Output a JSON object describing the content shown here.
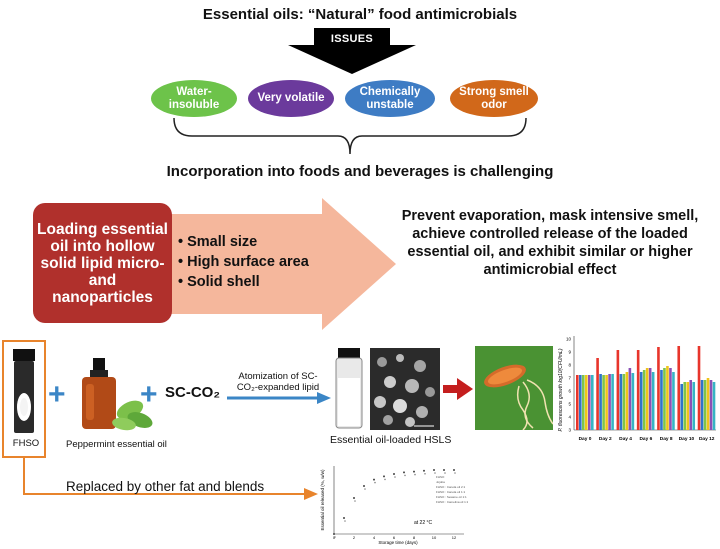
{
  "title": "Essential oils: “Natural” food antimicrobials",
  "issues_label": "ISSUES",
  "issues": [
    {
      "label": "Water-insoluble",
      "color": "#6dc34a"
    },
    {
      "label": "Very volatile",
      "color": "#6b3a9c"
    },
    {
      "label": "Chemically unstable",
      "color": "#3e7cc4"
    },
    {
      "label": "Strong smell odor",
      "color": "#d1681a"
    }
  ],
  "challenge": "Incorporation into foods and beverages is challenging",
  "loading_text": "Loading essential oil into hollow solid lipid micro- and nanoparticles",
  "features": [
    "Small size",
    "High surface area",
    "Solid shell"
  ],
  "result_text": "Prevent evaporation, mask intensive smell, achieve controlled release of the loaded essential oil, and exhibit similar or higher antimicrobial effect",
  "process": {
    "fhso_label": "FHSO",
    "peppermint_label": "Peppermint essential oil",
    "sc_co2_label": "SC-CO₂",
    "atomization_label": "Atomization of SC-CO₂-expanded lipid",
    "hsls_label": "Essential oil-loaded  HSLS",
    "replaced_label": "Replaced by other fat and blends"
  },
  "bar_chart": {
    "ylabel": "P. fluorescens growth log10(CFU/mL)",
    "categories": [
      "Day 0",
      "Day 2",
      "Day 4",
      "Day 6",
      "Day 8",
      "Day 10",
      "Day 12"
    ],
    "yticks": [
      "3",
      "4",
      "5",
      "6",
      "7",
      "8",
      "9",
      "10"
    ],
    "series_colors": [
      "#e8352b",
      "#2e74c9",
      "#7fc449",
      "#f0c419",
      "#8c50b5",
      "#36b4c4"
    ]
  },
  "line_chart": {
    "ylabel": "Essential oil released (%, w/w)",
    "xlabel": "Storage time (days)",
    "annotation": "at 22 °C",
    "xticks": [
      "0",
      "2",
      "4",
      "6",
      "8",
      "10",
      "12"
    ],
    "legend": [
      "FHSO",
      "Jojoba",
      "FHSO : Canola oil 2:1",
      "FHSO : Canola oil 1:1",
      "FHSO : Sesame oil 1:1",
      "FHSO : Camelina oil 1:1"
    ]
  },
  "colors": {
    "loading_box": "#b0302c",
    "big_arrow": "#f5b79c",
    "orange_link": "#e8842c",
    "blue_arrow": "#3b86c6"
  }
}
